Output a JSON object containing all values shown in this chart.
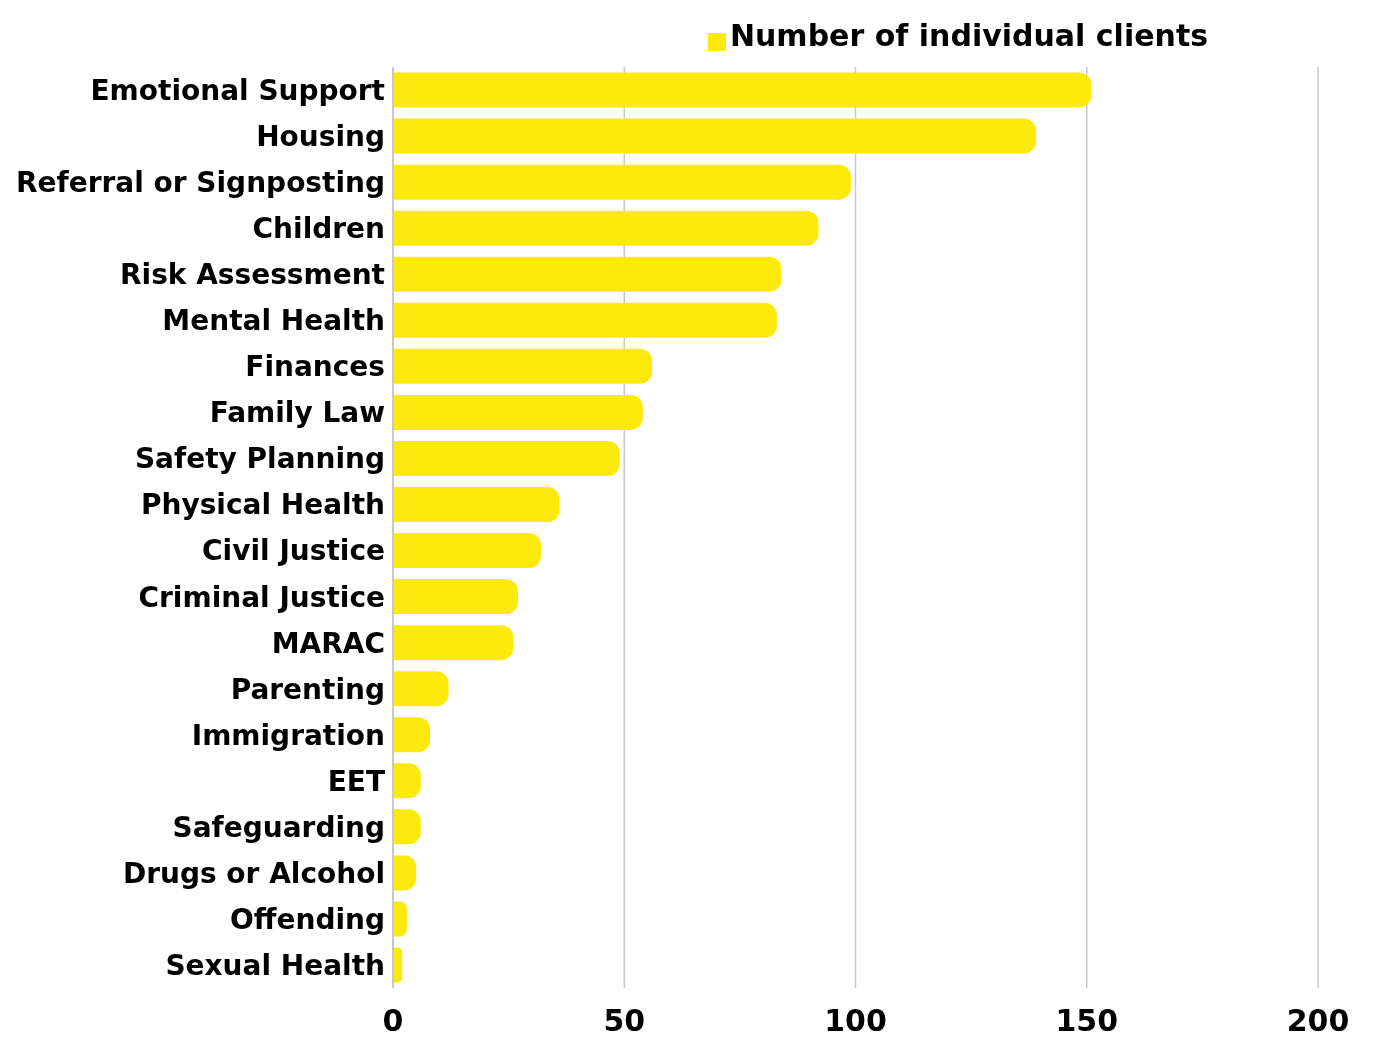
{
  "chart_data": {
    "type": "bar",
    "orientation": "horizontal",
    "categories": [
      "Emotional Support",
      "Housing",
      "Referral or Signposting",
      "Children",
      "Risk Assessment",
      "Mental Health",
      "Finances",
      "Family Law",
      "Safety Planning",
      "Physical Health",
      "Civil Justice",
      "Criminal Justice",
      "MARAC",
      "Parenting",
      "Immigration",
      "EET",
      "Safeguarding",
      "Drugs or Alcohol",
      "Offending",
      "Sexual Health"
    ],
    "series": [
      {
        "name": "Number of individual clients",
        "color": "#fbea0c",
        "values": [
          151,
          139,
          99,
          92,
          84,
          83,
          56,
          54,
          49,
          36,
          32,
          27,
          26,
          12,
          8,
          6,
          6,
          5,
          3,
          2
        ]
      }
    ],
    "xlim": [
      0,
      200
    ],
    "xticks": [
      0,
      50,
      100,
      150,
      200
    ],
    "grid": "x",
    "legend": "top"
  }
}
